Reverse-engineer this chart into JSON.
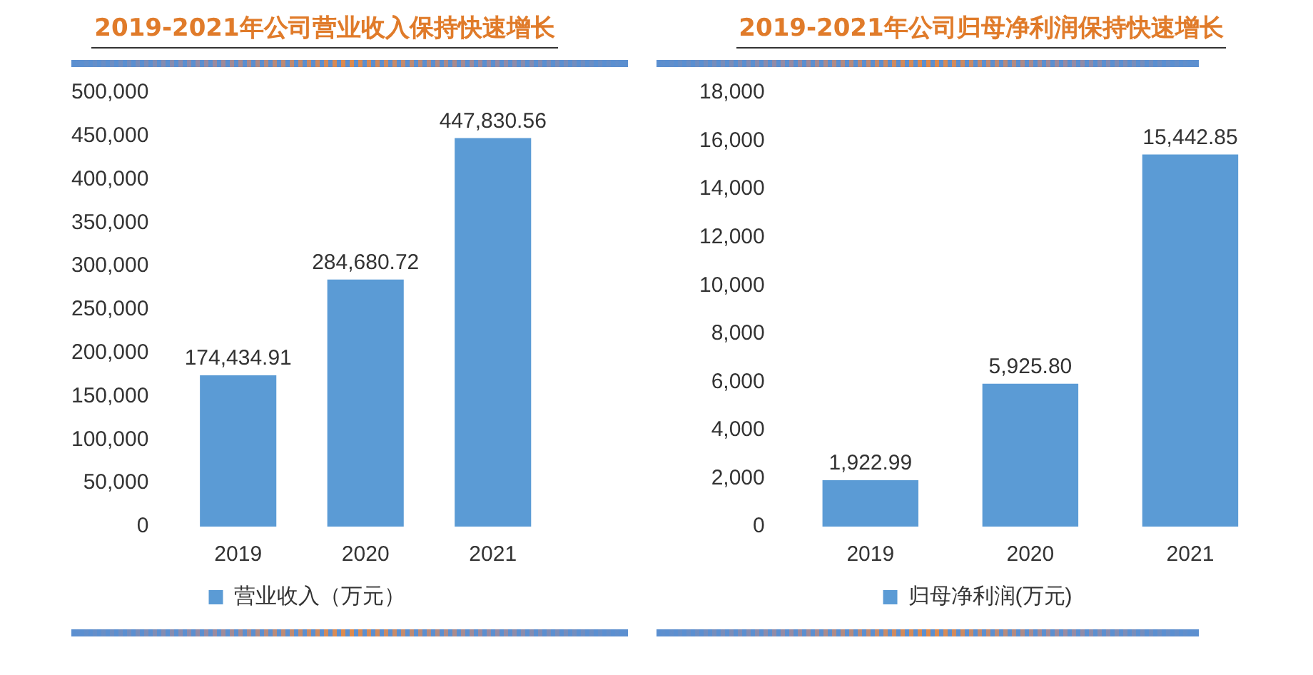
{
  "chart_data": [
    {
      "type": "bar",
      "title": "2019-2021年公司营业收入保持快速增长",
      "categories": [
        "2019",
        "2020",
        "2021"
      ],
      "series": [
        {
          "name": "营业收入（万元）",
          "color": "#5b9bd5",
          "values": [
            174434.91,
            284680.72,
            447830.56
          ],
          "value_labels": [
            "174,434.91",
            "284,680.72",
            "447,830.56"
          ]
        }
      ],
      "ylim": [
        0,
        500000
      ],
      "yticks": [
        0,
        {
          "value": 50000,
          "label": "50,000"
        },
        {
          "value": 100000,
          "label": "100,000"
        },
        {
          "value": 150000,
          "label": "150,000"
        },
        {
          "value": 200000,
          "label": "200,000"
        },
        {
          "value": 250000,
          "label": "250,000"
        },
        {
          "value": 300000,
          "label": "300,000"
        },
        {
          "value": 350000,
          "label": "350,000"
        },
        {
          "value": 400000,
          "label": "400,000"
        },
        {
          "value": 450000,
          "label": "450,000"
        },
        {
          "value": 500000,
          "label": "500,000"
        }
      ],
      "grid": false,
      "legend": "bottom"
    },
    {
      "type": "bar",
      "title": "2019-2021年公司归母净利润保持快速增长",
      "categories": [
        "2019",
        "2020",
        "2021"
      ],
      "series": [
        {
          "name": "归母净利润(万元)",
          "color": "#5b9bd5",
          "values": [
            1922.99,
            5925.8,
            15442.85
          ],
          "value_labels": [
            "1,922.99",
            "5,925.80",
            "15,442.85"
          ]
        }
      ],
      "ylim": [
        0,
        18000
      ],
      "yticks": [
        0,
        {
          "value": 2000,
          "label": "2,000"
        },
        {
          "value": 4000,
          "label": "4,000"
        },
        {
          "value": 6000,
          "label": "6,000"
        },
        {
          "value": 8000,
          "label": "8,000"
        },
        {
          "value": 10000,
          "label": "10,000"
        },
        {
          "value": 12000,
          "label": "12,000"
        },
        {
          "value": 14000,
          "label": "14,000"
        },
        {
          "value": 16000,
          "label": "16,000"
        },
        {
          "value": 18000,
          "label": "18,000"
        }
      ],
      "grid": false,
      "legend": "bottom"
    }
  ]
}
